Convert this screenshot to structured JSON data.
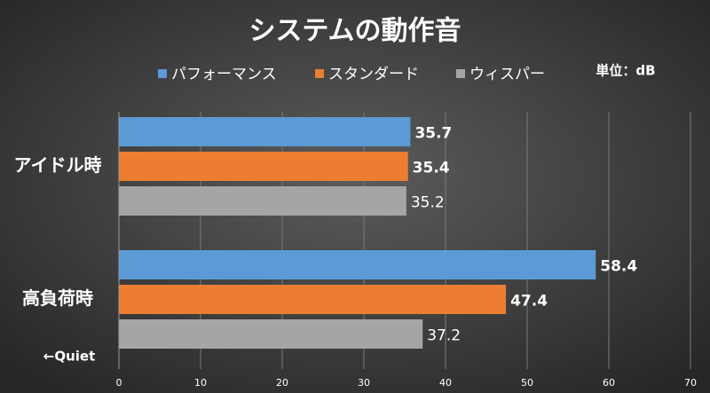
{
  "chart_data": {
    "type": "bar",
    "orientation": "horizontal",
    "title": "システムの動作音",
    "unit_label": "単位：dB",
    "annotation": "←Quiet",
    "categories": [
      "アイドル時",
      "高負荷時"
    ],
    "series": [
      {
        "name": "パフォーマンス",
        "color": "#5b9bd5",
        "values": [
          35.7,
          58.4
        ]
      },
      {
        "name": "スタンダード",
        "color": "#ed7d31",
        "values": [
          35.4,
          47.4
        ]
      },
      {
        "name": "ウィスパー",
        "color": "#a5a5a5",
        "values": [
          35.2,
          37.2
        ]
      }
    ],
    "xlim": [
      0,
      70
    ],
    "xticks": [
      0,
      10,
      20,
      30,
      40,
      50,
      60,
      70
    ],
    "grid": true
  }
}
